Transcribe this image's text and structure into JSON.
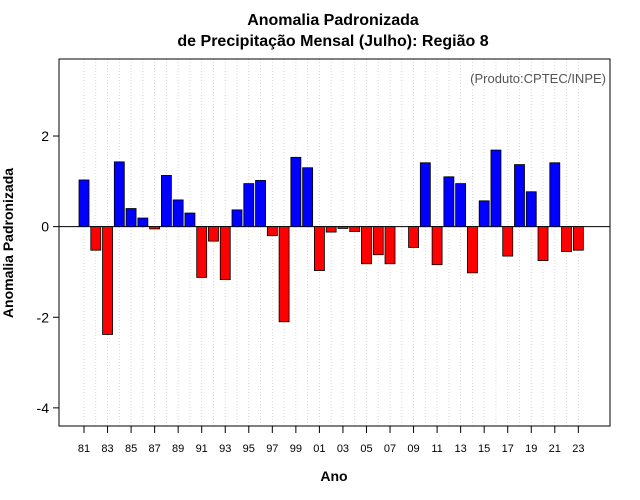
{
  "chart_data": {
    "type": "bar",
    "title": "Anomalia Padronizada",
    "subtitle": "de Precipitação Mensal (Julho): Região 8",
    "xlabel": "Ano",
    "ylabel": "Anomalia Padronizada",
    "credit": "(Produto:CPTEC/INPE)",
    "ylim": [
      -4.4,
      3.7
    ],
    "yticks": [
      -4,
      -2,
      0,
      2
    ],
    "ytick_labels": [
      "-4",
      "-2",
      "0",
      "2"
    ],
    "positive_color": "#0000ff",
    "negative_color": "#ff0000",
    "categories": [
      "81",
      "82",
      "83",
      "84",
      "85",
      "86",
      "87",
      "88",
      "89",
      "90",
      "91",
      "92",
      "93",
      "94",
      "95",
      "96",
      "97",
      "98",
      "99",
      "00",
      "01",
      "02",
      "03",
      "04",
      "05",
      "06",
      "07",
      "08",
      "09",
      "10",
      "11",
      "12",
      "13",
      "14",
      "15",
      "16",
      "17",
      "18",
      "19",
      "20",
      "21",
      "22",
      "23"
    ],
    "x_tick_labels": [
      "81",
      "83",
      "85",
      "87",
      "89",
      "91",
      "93",
      "95",
      "97",
      "99",
      "01",
      "03",
      "05",
      "07",
      "09",
      "11",
      "13",
      "15",
      "17",
      "19",
      "21",
      "23"
    ],
    "values": [
      1.03,
      -0.52,
      -2.38,
      1.43,
      0.4,
      0.19,
      -0.05,
      1.13,
      0.59,
      0.3,
      -1.12,
      -0.32,
      -1.17,
      0.37,
      0.95,
      1.02,
      -0.2,
      -2.1,
      1.53,
      1.3,
      -0.97,
      -0.12,
      -0.04,
      -0.11,
      -0.82,
      -0.62,
      -0.82,
      0.0,
      -0.46,
      1.41,
      -0.84,
      1.1,
      0.95,
      -1.02,
      0.57,
      1.69,
      -0.65,
      1.37,
      0.77,
      -0.75,
      1.41,
      -0.55,
      -0.52
    ]
  }
}
